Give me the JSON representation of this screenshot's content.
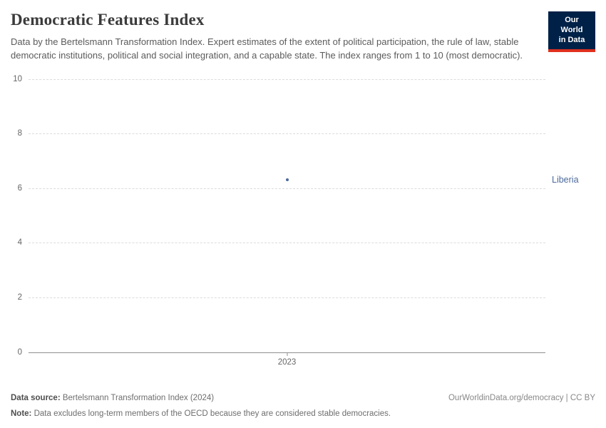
{
  "header": {
    "logo": {
      "line1": "Our World",
      "line2": "in Data",
      "bg_color": "#002147",
      "accent_color": "#e0301e"
    }
  },
  "chart_data": {
    "type": "scatter",
    "title": "Democratic Features Index",
    "subtitle": "Data by the Bertelsmann Transformation Index. Expert estimates of the extent of political participation, the rule of law, stable democratic institutions, political and social integration, and a capable state. The index ranges from 1 to 10 (most democratic).",
    "x": [
      2023
    ],
    "xticks": [
      2023
    ],
    "series": [
      {
        "name": "Liberia",
        "values": [
          6.3
        ],
        "color": "#4c6a9c"
      }
    ],
    "xlabel": "",
    "ylabel": "",
    "ylim": [
      0,
      10
    ],
    "yticks": [
      0,
      2,
      4,
      6,
      8,
      10
    ],
    "grid": true,
    "gridline_color": "#dcdcdc",
    "axis_color": "#8f8f8f",
    "legend_position": "right-entity-label"
  },
  "footer": {
    "source_label": "Data source:",
    "source_text": " Bertelsmann Transformation Index (2024)",
    "right_text": "OurWorldinData.org/democracy | CC BY",
    "note_label": "Note:",
    "note_text": " Data excludes long-term members of the OECD because they are considered stable democracies."
  }
}
